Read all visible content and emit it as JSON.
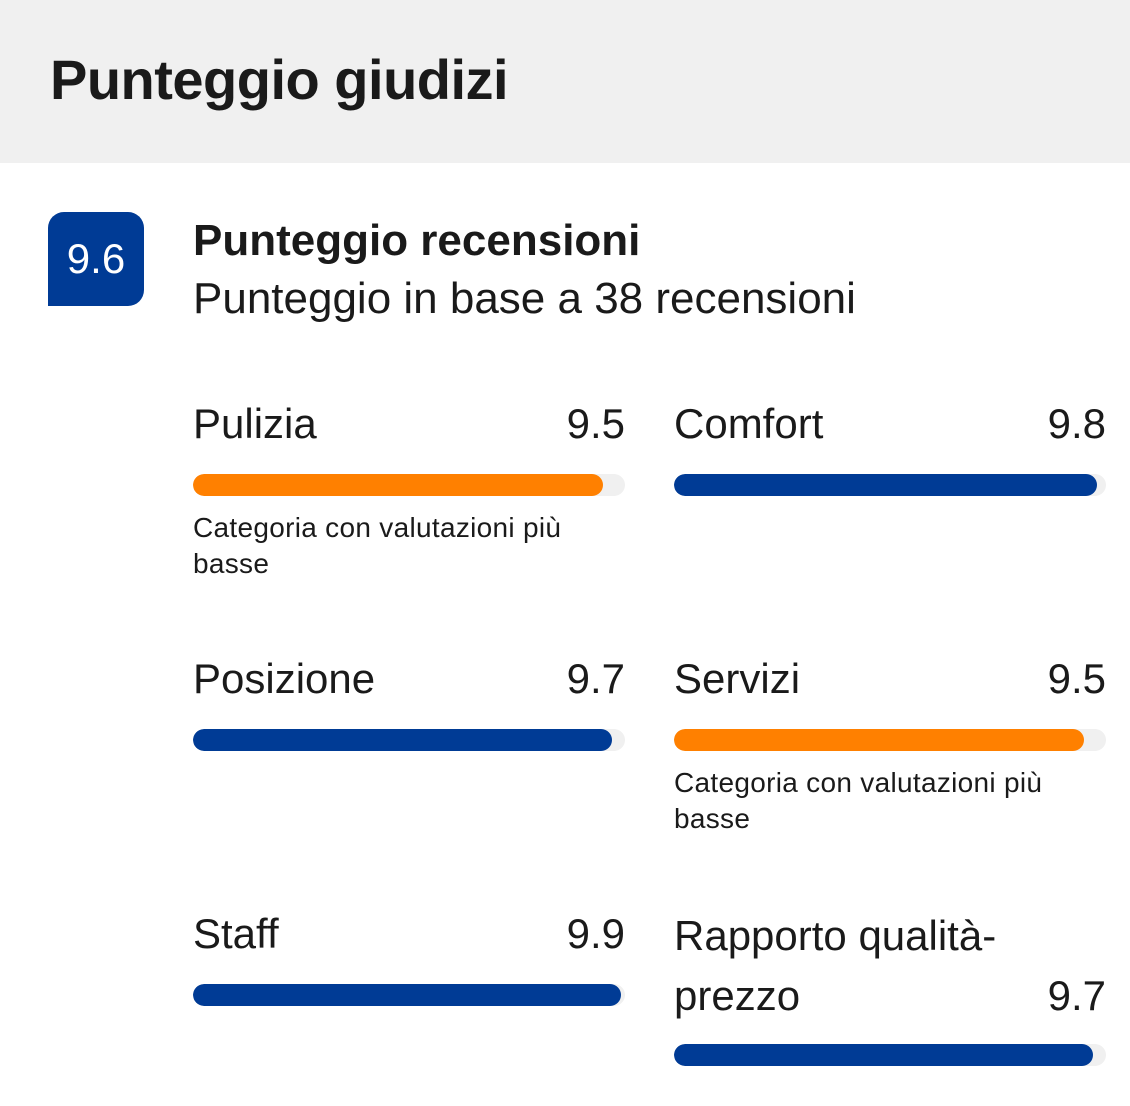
{
  "header": {
    "title": "Punteggio giudizi"
  },
  "summary": {
    "score": "9.6",
    "title": "Punteggio recensioni",
    "subtitle": "Punteggio in base a 38 recensioni"
  },
  "colors": {
    "primary": "#003b95",
    "low": "#ff8000",
    "track": "#f0f0f0"
  },
  "categories": [
    {
      "label": "Pulizia",
      "score": "9.5",
      "value": 9.5,
      "lowest": true,
      "note": "Categoria con valutazioni più basse"
    },
    {
      "label": "Comfort",
      "score": "9.8",
      "value": 9.8,
      "lowest": false,
      "note": ""
    },
    {
      "label": "Posizione",
      "score": "9.7",
      "value": 9.7,
      "lowest": false,
      "note": ""
    },
    {
      "label": "Servizi",
      "score": "9.5",
      "value": 9.5,
      "lowest": true,
      "note": "Categoria con valutazioni più basse"
    },
    {
      "label": "Staff",
      "score": "9.9",
      "value": 9.9,
      "lowest": false,
      "note": ""
    },
    {
      "label": "Rapporto qualità-prezzo",
      "score": "9.7",
      "value": 9.7,
      "lowest": false,
      "note": ""
    }
  ],
  "scale_max": 10
}
